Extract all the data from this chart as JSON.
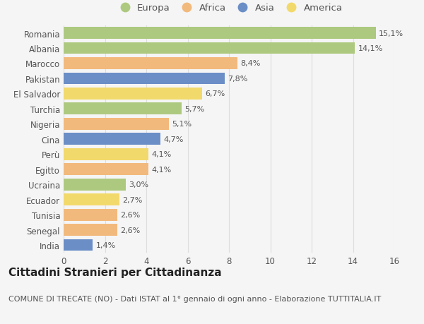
{
  "categories": [
    "Romania",
    "Albania",
    "Marocco",
    "Pakistan",
    "El Salvador",
    "Turchia",
    "Nigeria",
    "Cina",
    "Perù",
    "Egitto",
    "Ucraina",
    "Ecuador",
    "Tunisia",
    "Senegal",
    "India"
  ],
  "values": [
    15.1,
    14.1,
    8.4,
    7.8,
    6.7,
    5.7,
    5.1,
    4.7,
    4.1,
    4.1,
    3.0,
    2.7,
    2.6,
    2.6,
    1.4
  ],
  "labels": [
    "15,1%",
    "14,1%",
    "8,4%",
    "7,8%",
    "6,7%",
    "5,7%",
    "5,1%",
    "4,7%",
    "4,1%",
    "4,1%",
    "3,0%",
    "2,7%",
    "2,6%",
    "2,6%",
    "1,4%"
  ],
  "continents": [
    "Europa",
    "Europa",
    "Africa",
    "Asia",
    "America",
    "Europa",
    "Africa",
    "Asia",
    "America",
    "Africa",
    "Europa",
    "America",
    "Africa",
    "Africa",
    "Asia"
  ],
  "continent_colors": {
    "Europa": "#adc980",
    "Africa": "#f2b97c",
    "Asia": "#6b8ec7",
    "America": "#f2d96b"
  },
  "legend_order": [
    "Europa",
    "Africa",
    "Asia",
    "America"
  ],
  "title": "Cittadini Stranieri per Cittadinanza",
  "subtitle": "COMUNE DI TRECATE (NO) - Dati ISTAT al 1° gennaio di ogni anno - Elaborazione TUTTITALIA.IT",
  "xlim": [
    0,
    16
  ],
  "xticks": [
    0,
    2,
    4,
    6,
    8,
    10,
    12,
    14,
    16
  ],
  "background_color": "#f5f5f5",
  "grid_color": "#dddddd",
  "bar_height": 0.78,
  "title_fontsize": 11,
  "subtitle_fontsize": 8,
  "label_fontsize": 8,
  "tick_fontsize": 8.5,
  "legend_fontsize": 9.5
}
